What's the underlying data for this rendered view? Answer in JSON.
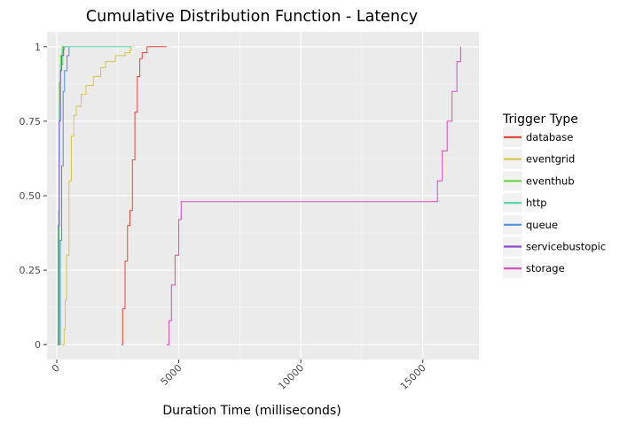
{
  "chart_data": {
    "type": "line",
    "title": "Cumulative Distribution Function - Latency",
    "xlabel": "Duration Time (milliseconds)",
    "ylabel": "",
    "xlim": [
      -400,
      17300
    ],
    "ylim": [
      -0.05,
      1.05
    ],
    "xticks": [
      0,
      5000,
      10000,
      15000
    ],
    "xtick_labels": [
      "0",
      "5000",
      "10000",
      "15000"
    ],
    "yticks": [
      0,
      0.25,
      0.5,
      0.75,
      1
    ],
    "ytick_labels": [
      "0",
      "0.25",
      "0.50",
      "0.75",
      "1"
    ],
    "grid": true,
    "legend": {
      "title": "Trigger Type",
      "position": "right"
    },
    "series": [
      {
        "name": "database",
        "color": "#E24A3B",
        "points": [
          [
            2650,
            0
          ],
          [
            2700,
            0.12
          ],
          [
            2800,
            0.28
          ],
          [
            2900,
            0.4
          ],
          [
            3000,
            0.45
          ],
          [
            3100,
            0.62
          ],
          [
            3200,
            0.78
          ],
          [
            3300,
            0.9
          ],
          [
            3400,
            0.96
          ],
          [
            3500,
            0.98
          ],
          [
            3700,
            1.0
          ],
          [
            4500,
            1.0
          ]
        ]
      },
      {
        "name": "eventgrid",
        "color": "#D4C845",
        "points": [
          [
            200,
            0
          ],
          [
            300,
            0.05
          ],
          [
            350,
            0.15
          ],
          [
            400,
            0.3
          ],
          [
            500,
            0.55
          ],
          [
            600,
            0.7
          ],
          [
            700,
            0.77
          ],
          [
            800,
            0.8
          ],
          [
            1000,
            0.84
          ],
          [
            1200,
            0.87
          ],
          [
            1500,
            0.9
          ],
          [
            1800,
            0.93
          ],
          [
            2000,
            0.95
          ],
          [
            2400,
            0.97
          ],
          [
            2800,
            0.98
          ],
          [
            3000,
            0.99
          ],
          [
            3050,
            1.0
          ]
        ]
      },
      {
        "name": "eventhub",
        "color": "#6CD44A",
        "points": [
          [
            50,
            0
          ],
          [
            80,
            0.45
          ],
          [
            110,
            0.88
          ],
          [
            160,
            0.97
          ],
          [
            220,
            1.0
          ],
          [
            400,
            1.0
          ]
        ]
      },
      {
        "name": "http",
        "color": "#5BD6A6",
        "points": [
          [
            60,
            0
          ],
          [
            100,
            0.8
          ],
          [
            150,
            0.94
          ],
          [
            250,
            0.99
          ],
          [
            300,
            1.0
          ],
          [
            3050,
            1.0
          ]
        ]
      },
      {
        "name": "queue",
        "color": "#4A90D9",
        "points": [
          [
            100,
            0
          ],
          [
            140,
            0.35
          ],
          [
            200,
            0.6
          ],
          [
            260,
            0.85
          ],
          [
            320,
            0.92
          ],
          [
            420,
            0.97
          ],
          [
            500,
            1.0
          ]
        ]
      },
      {
        "name": "servicebustopic",
        "color": "#8A4FCF",
        "points": [
          [
            30,
            0
          ],
          [
            60,
            0.4
          ],
          [
            100,
            0.75
          ],
          [
            150,
            0.92
          ],
          [
            200,
            0.97
          ],
          [
            280,
            1.0
          ]
        ]
      },
      {
        "name": "storage",
        "color": "#D84BBF",
        "points": [
          [
            4500,
            0
          ],
          [
            4600,
            0.08
          ],
          [
            4700,
            0.2
          ],
          [
            4850,
            0.3
          ],
          [
            5000,
            0.42
          ],
          [
            5100,
            0.48
          ],
          [
            15450,
            0.48
          ],
          [
            15600,
            0.55
          ],
          [
            15800,
            0.65
          ],
          [
            16000,
            0.75
          ],
          [
            16200,
            0.85
          ],
          [
            16400,
            0.95
          ],
          [
            16550,
            1.0
          ]
        ]
      }
    ]
  }
}
